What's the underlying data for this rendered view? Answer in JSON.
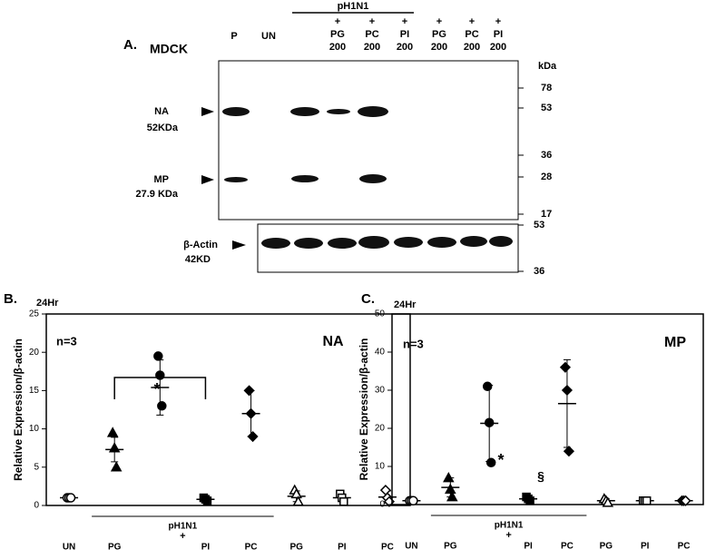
{
  "panel_a": {
    "label": "A.",
    "cell": "MDCK",
    "lanes_top": [
      "P",
      "UN"
    ],
    "group": "pH1N1",
    "lanes": [
      {
        "plus": "+",
        "name": "PG",
        "dose": "200"
      },
      {
        "plus": "+",
        "name": "PC",
        "dose": "200"
      },
      {
        "plus": "+",
        "name": "PI",
        "dose": "200"
      },
      {
        "plus": "+",
        "name": "PG",
        "dose": "200"
      },
      {
        "plus": "+",
        "name": "PC",
        "dose": "200"
      },
      {
        "plus": "+",
        "name": "PI",
        "dose": "200"
      }
    ],
    "kda_title": "kDa",
    "kda": [
      "78",
      "53",
      "36",
      "28",
      "17"
    ],
    "actin_kda": [
      "53",
      "36"
    ],
    "na": "NA",
    "na_size": "52KDa",
    "mp": "MP",
    "mp_size": "27.9 KDa",
    "actin": "β-Actin",
    "actin_size": "42KD"
  },
  "chart_data": [
    {
      "type": "scatter",
      "panel": "B.",
      "time": "24Hr",
      "ylabel": "Relative Expression/β-actin",
      "annotations": [
        "n=3",
        "NA",
        "*"
      ],
      "group": "pH1N1",
      "plus": "+",
      "categories": [
        "UN",
        "PG",
        null,
        "PI",
        "PC",
        "PG",
        "PI",
        "PC"
      ],
      "markers": [
        "circle-open",
        "triangle",
        "circle",
        "square",
        "diamond",
        "triangle-open",
        "square-open",
        "diamond-open"
      ],
      "color": "#000000",
      "values": [
        [
          1,
          1,
          1
        ],
        [
          9.5,
          7.5,
          5
        ],
        [
          19.5,
          17,
          13
        ],
        [
          1,
          0.8,
          0.6
        ],
        [
          15,
          12,
          9
        ],
        [
          2,
          1.5,
          0.5
        ],
        [
          1.5,
          1,
          0.5
        ],
        [
          2,
          1,
          0.5
        ]
      ],
      "mean": [
        1,
        7.3,
        15.4,
        0.8,
        12,
        1.2,
        1,
        1.1
      ],
      "sd": [
        0.1,
        1.6,
        3.6,
        0.2,
        3,
        0.7,
        0.5,
        0.8
      ],
      "ylim": [
        0,
        25
      ],
      "yticks": [
        0,
        5,
        10,
        15,
        20,
        25
      ]
    },
    {
      "type": "scatter",
      "panel": "C.",
      "time": "24Hr",
      "ylabel": "Relative Expression/β-actin",
      "annotations": [
        "n=3",
        "MP",
        "*",
        "§"
      ],
      "group": "pH1N1",
      "plus": "+",
      "categories": [
        "UN",
        "PG",
        null,
        "PI",
        "PC",
        "PG",
        "PI",
        "PC"
      ],
      "markers": [
        "circle-open",
        "triangle",
        "circle",
        "square",
        "diamond",
        "triangle-open",
        "square-open",
        "diamond-open"
      ],
      "color": "#000000",
      "values": [
        [
          1,
          1,
          1
        ],
        [
          7,
          4,
          2
        ],
        [
          31,
          21.5,
          11
        ],
        [
          2,
          1.5,
          1
        ],
        [
          36,
          30,
          14
        ],
        [
          1.5,
          1,
          0.5
        ],
        [
          1,
          1,
          1
        ],
        [
          1,
          1,
          1
        ]
      ],
      "mean": [
        1,
        4.5,
        21.3,
        1.5,
        26.5,
        1,
        1,
        1
      ],
      "sd": [
        0.1,
        2.5,
        10,
        0.5,
        11.5,
        0.5,
        0.1,
        0.1
      ],
      "ylim": [
        0,
        50
      ],
      "yticks": [
        0,
        10,
        20,
        30,
        40,
        50
      ]
    }
  ]
}
